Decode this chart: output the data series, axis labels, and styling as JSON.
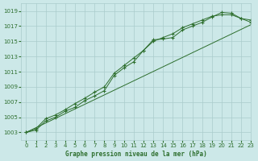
{
  "bg_color": "#cce8e8",
  "grid_color": "#aacccc",
  "line_color": "#2d6e2d",
  "title": "Graphe pression niveau de la mer (hPa)",
  "xlim": [
    -0.5,
    23
  ],
  "ylim": [
    1002.0,
    1020.0
  ],
  "xticks": [
    0,
    1,
    2,
    3,
    4,
    5,
    6,
    7,
    8,
    9,
    10,
    11,
    12,
    13,
    14,
    15,
    16,
    17,
    18,
    19,
    20,
    21,
    22,
    23
  ],
  "yticks": [
    1003,
    1005,
    1007,
    1009,
    1011,
    1013,
    1015,
    1017,
    1019
  ],
  "series1_x": [
    0,
    1,
    2,
    3,
    4,
    5,
    6,
    7,
    8,
    9,
    10,
    11,
    12,
    13,
    14,
    15,
    16,
    17,
    18,
    19,
    20,
    21,
    22,
    23
  ],
  "series1_y": [
    1003.0,
    1003.3,
    1004.5,
    1005.0,
    1005.8,
    1006.3,
    1007.2,
    1007.8,
    1008.5,
    1010.5,
    1011.5,
    1012.3,
    1013.8,
    1015.2,
    1015.3,
    1015.5,
    1016.5,
    1017.0,
    1017.5,
    1018.2,
    1018.8,
    1018.7,
    1018.0,
    1017.8
  ],
  "series2_x": [
    0,
    1,
    2,
    3,
    4,
    5,
    6,
    7,
    8,
    9,
    10,
    11,
    12,
    13,
    14,
    15,
    16,
    17,
    18,
    19,
    20,
    21,
    22,
    23
  ],
  "series2_y": [
    1003.0,
    1003.5,
    1004.8,
    1005.3,
    1006.0,
    1006.8,
    1007.5,
    1008.3,
    1009.0,
    1010.8,
    1011.8,
    1012.8,
    1013.8,
    1015.0,
    1015.5,
    1016.0,
    1016.8,
    1017.3,
    1017.8,
    1018.3,
    1018.5,
    1018.5,
    1018.0,
    1017.5
  ],
  "series3_x": [
    0,
    23
  ],
  "series3_y": [
    1003.0,
    1017.2
  ]
}
